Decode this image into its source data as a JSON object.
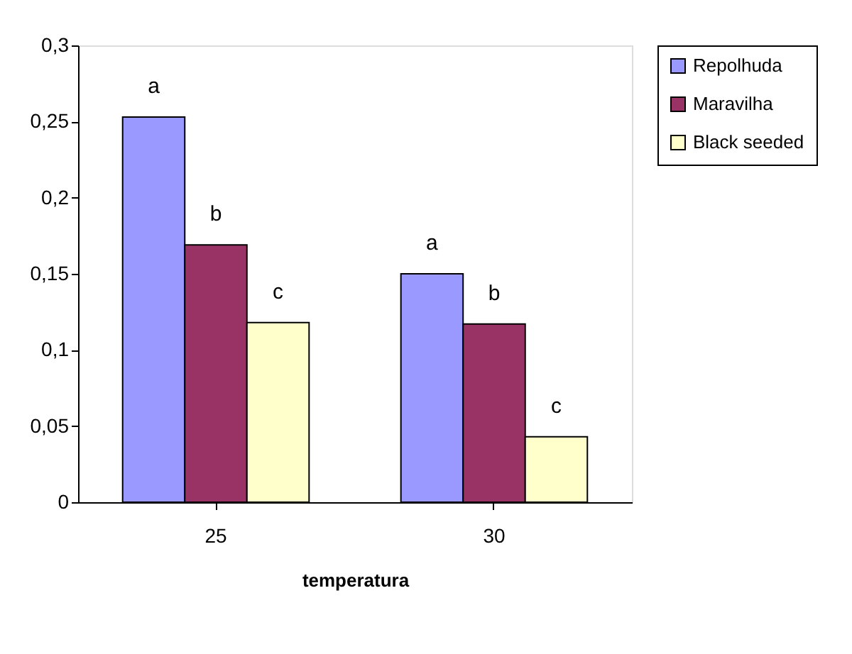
{
  "chart_data": {
    "type": "bar",
    "xlabel": "temperatura",
    "categories": [
      "25",
      "30"
    ],
    "series": [
      {
        "name": "Repolhuda",
        "color": "#9999ff",
        "values": [
          0.253,
          0.15
        ],
        "value_labels": [
          "a",
          "a"
        ]
      },
      {
        "name": "Maravilha",
        "color": "#993366",
        "values": [
          0.169,
          0.117
        ],
        "value_labels": [
          "b",
          "b"
        ]
      },
      {
        "name": "Black seeded",
        "color": "#ffffcc",
        "values": [
          0.118,
          0.043
        ],
        "value_labels": [
          "c",
          "c"
        ]
      }
    ],
    "ylim": [
      0,
      0.3
    ],
    "yticks": [
      0,
      {
        "value": 0.05,
        "label": "0,05"
      },
      {
        "value": 0.1,
        "label": "0,1"
      },
      {
        "value": 0.15,
        "label": "0,15"
      },
      {
        "value": 0.2,
        "label": "0,2"
      },
      {
        "value": 0.25,
        "label": "0,25"
      },
      {
        "value": 0.3,
        "label": "0,3"
      }
    ],
    "grid": false,
    "legend": "right"
  }
}
